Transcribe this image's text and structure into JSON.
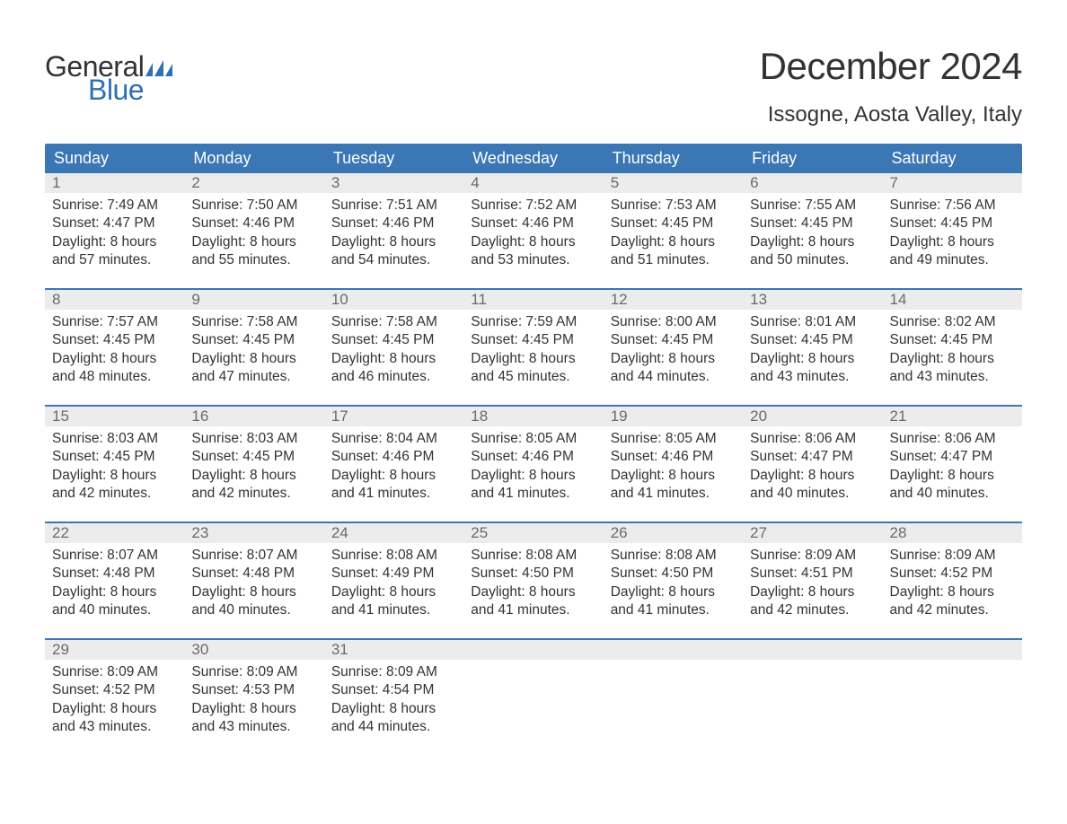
{
  "brand": {
    "word1": "General",
    "word2": "Blue",
    "text_color": "#333333",
    "accent_color": "#2f70b3"
  },
  "header": {
    "title": "December 2024",
    "location": "Issogne, Aosta Valley, Italy"
  },
  "calendar": {
    "type": "table",
    "header_bg": "#3b76b5",
    "header_text_color": "#ffffff",
    "row_divider_color": "#3b76b5",
    "daynum_bg": "#ececec",
    "daynum_color": "#6a6a6a",
    "body_text_color": "#333333",
    "background_color": "#ffffff",
    "columns": [
      "Sunday",
      "Monday",
      "Tuesday",
      "Wednesday",
      "Thursday",
      "Friday",
      "Saturday"
    ],
    "title_fontsize": 42,
    "location_fontsize": 24,
    "header_fontsize": 18,
    "daynum_fontsize": 17,
    "body_fontsize": 15.5,
    "weeks": [
      [
        {
          "n": "1",
          "sunrise": "Sunrise: 7:49 AM",
          "sunset": "Sunset: 4:47 PM",
          "d1": "Daylight: 8 hours",
          "d2": "and 57 minutes."
        },
        {
          "n": "2",
          "sunrise": "Sunrise: 7:50 AM",
          "sunset": "Sunset: 4:46 PM",
          "d1": "Daylight: 8 hours",
          "d2": "and 55 minutes."
        },
        {
          "n": "3",
          "sunrise": "Sunrise: 7:51 AM",
          "sunset": "Sunset: 4:46 PM",
          "d1": "Daylight: 8 hours",
          "d2": "and 54 minutes."
        },
        {
          "n": "4",
          "sunrise": "Sunrise: 7:52 AM",
          "sunset": "Sunset: 4:46 PM",
          "d1": "Daylight: 8 hours",
          "d2": "and 53 minutes."
        },
        {
          "n": "5",
          "sunrise": "Sunrise: 7:53 AM",
          "sunset": "Sunset: 4:45 PM",
          "d1": "Daylight: 8 hours",
          "d2": "and 51 minutes."
        },
        {
          "n": "6",
          "sunrise": "Sunrise: 7:55 AM",
          "sunset": "Sunset: 4:45 PM",
          "d1": "Daylight: 8 hours",
          "d2": "and 50 minutes."
        },
        {
          "n": "7",
          "sunrise": "Sunrise: 7:56 AM",
          "sunset": "Sunset: 4:45 PM",
          "d1": "Daylight: 8 hours",
          "d2": "and 49 minutes."
        }
      ],
      [
        {
          "n": "8",
          "sunrise": "Sunrise: 7:57 AM",
          "sunset": "Sunset: 4:45 PM",
          "d1": "Daylight: 8 hours",
          "d2": "and 48 minutes."
        },
        {
          "n": "9",
          "sunrise": "Sunrise: 7:58 AM",
          "sunset": "Sunset: 4:45 PM",
          "d1": "Daylight: 8 hours",
          "d2": "and 47 minutes."
        },
        {
          "n": "10",
          "sunrise": "Sunrise: 7:58 AM",
          "sunset": "Sunset: 4:45 PM",
          "d1": "Daylight: 8 hours",
          "d2": "and 46 minutes."
        },
        {
          "n": "11",
          "sunrise": "Sunrise: 7:59 AM",
          "sunset": "Sunset: 4:45 PM",
          "d1": "Daylight: 8 hours",
          "d2": "and 45 minutes."
        },
        {
          "n": "12",
          "sunrise": "Sunrise: 8:00 AM",
          "sunset": "Sunset: 4:45 PM",
          "d1": "Daylight: 8 hours",
          "d2": "and 44 minutes."
        },
        {
          "n": "13",
          "sunrise": "Sunrise: 8:01 AM",
          "sunset": "Sunset: 4:45 PM",
          "d1": "Daylight: 8 hours",
          "d2": "and 43 minutes."
        },
        {
          "n": "14",
          "sunrise": "Sunrise: 8:02 AM",
          "sunset": "Sunset: 4:45 PM",
          "d1": "Daylight: 8 hours",
          "d2": "and 43 minutes."
        }
      ],
      [
        {
          "n": "15",
          "sunrise": "Sunrise: 8:03 AM",
          "sunset": "Sunset: 4:45 PM",
          "d1": "Daylight: 8 hours",
          "d2": "and 42 minutes."
        },
        {
          "n": "16",
          "sunrise": "Sunrise: 8:03 AM",
          "sunset": "Sunset: 4:45 PM",
          "d1": "Daylight: 8 hours",
          "d2": "and 42 minutes."
        },
        {
          "n": "17",
          "sunrise": "Sunrise: 8:04 AM",
          "sunset": "Sunset: 4:46 PM",
          "d1": "Daylight: 8 hours",
          "d2": "and 41 minutes."
        },
        {
          "n": "18",
          "sunrise": "Sunrise: 8:05 AM",
          "sunset": "Sunset: 4:46 PM",
          "d1": "Daylight: 8 hours",
          "d2": "and 41 minutes."
        },
        {
          "n": "19",
          "sunrise": "Sunrise: 8:05 AM",
          "sunset": "Sunset: 4:46 PM",
          "d1": "Daylight: 8 hours",
          "d2": "and 41 minutes."
        },
        {
          "n": "20",
          "sunrise": "Sunrise: 8:06 AM",
          "sunset": "Sunset: 4:47 PM",
          "d1": "Daylight: 8 hours",
          "d2": "and 40 minutes."
        },
        {
          "n": "21",
          "sunrise": "Sunrise: 8:06 AM",
          "sunset": "Sunset: 4:47 PM",
          "d1": "Daylight: 8 hours",
          "d2": "and 40 minutes."
        }
      ],
      [
        {
          "n": "22",
          "sunrise": "Sunrise: 8:07 AM",
          "sunset": "Sunset: 4:48 PM",
          "d1": "Daylight: 8 hours",
          "d2": "and 40 minutes."
        },
        {
          "n": "23",
          "sunrise": "Sunrise: 8:07 AM",
          "sunset": "Sunset: 4:48 PM",
          "d1": "Daylight: 8 hours",
          "d2": "and 40 minutes."
        },
        {
          "n": "24",
          "sunrise": "Sunrise: 8:08 AM",
          "sunset": "Sunset: 4:49 PM",
          "d1": "Daylight: 8 hours",
          "d2": "and 41 minutes."
        },
        {
          "n": "25",
          "sunrise": "Sunrise: 8:08 AM",
          "sunset": "Sunset: 4:50 PM",
          "d1": "Daylight: 8 hours",
          "d2": "and 41 minutes."
        },
        {
          "n": "26",
          "sunrise": "Sunrise: 8:08 AM",
          "sunset": "Sunset: 4:50 PM",
          "d1": "Daylight: 8 hours",
          "d2": "and 41 minutes."
        },
        {
          "n": "27",
          "sunrise": "Sunrise: 8:09 AM",
          "sunset": "Sunset: 4:51 PM",
          "d1": "Daylight: 8 hours",
          "d2": "and 42 minutes."
        },
        {
          "n": "28",
          "sunrise": "Sunrise: 8:09 AM",
          "sunset": "Sunset: 4:52 PM",
          "d1": "Daylight: 8 hours",
          "d2": "and 42 minutes."
        }
      ],
      [
        {
          "n": "29",
          "sunrise": "Sunrise: 8:09 AM",
          "sunset": "Sunset: 4:52 PM",
          "d1": "Daylight: 8 hours",
          "d2": "and 43 minutes."
        },
        {
          "n": "30",
          "sunrise": "Sunrise: 8:09 AM",
          "sunset": "Sunset: 4:53 PM",
          "d1": "Daylight: 8 hours",
          "d2": "and 43 minutes."
        },
        {
          "n": "31",
          "sunrise": "Sunrise: 8:09 AM",
          "sunset": "Sunset: 4:54 PM",
          "d1": "Daylight: 8 hours",
          "d2": "and 44 minutes."
        },
        null,
        null,
        null,
        null
      ]
    ]
  }
}
